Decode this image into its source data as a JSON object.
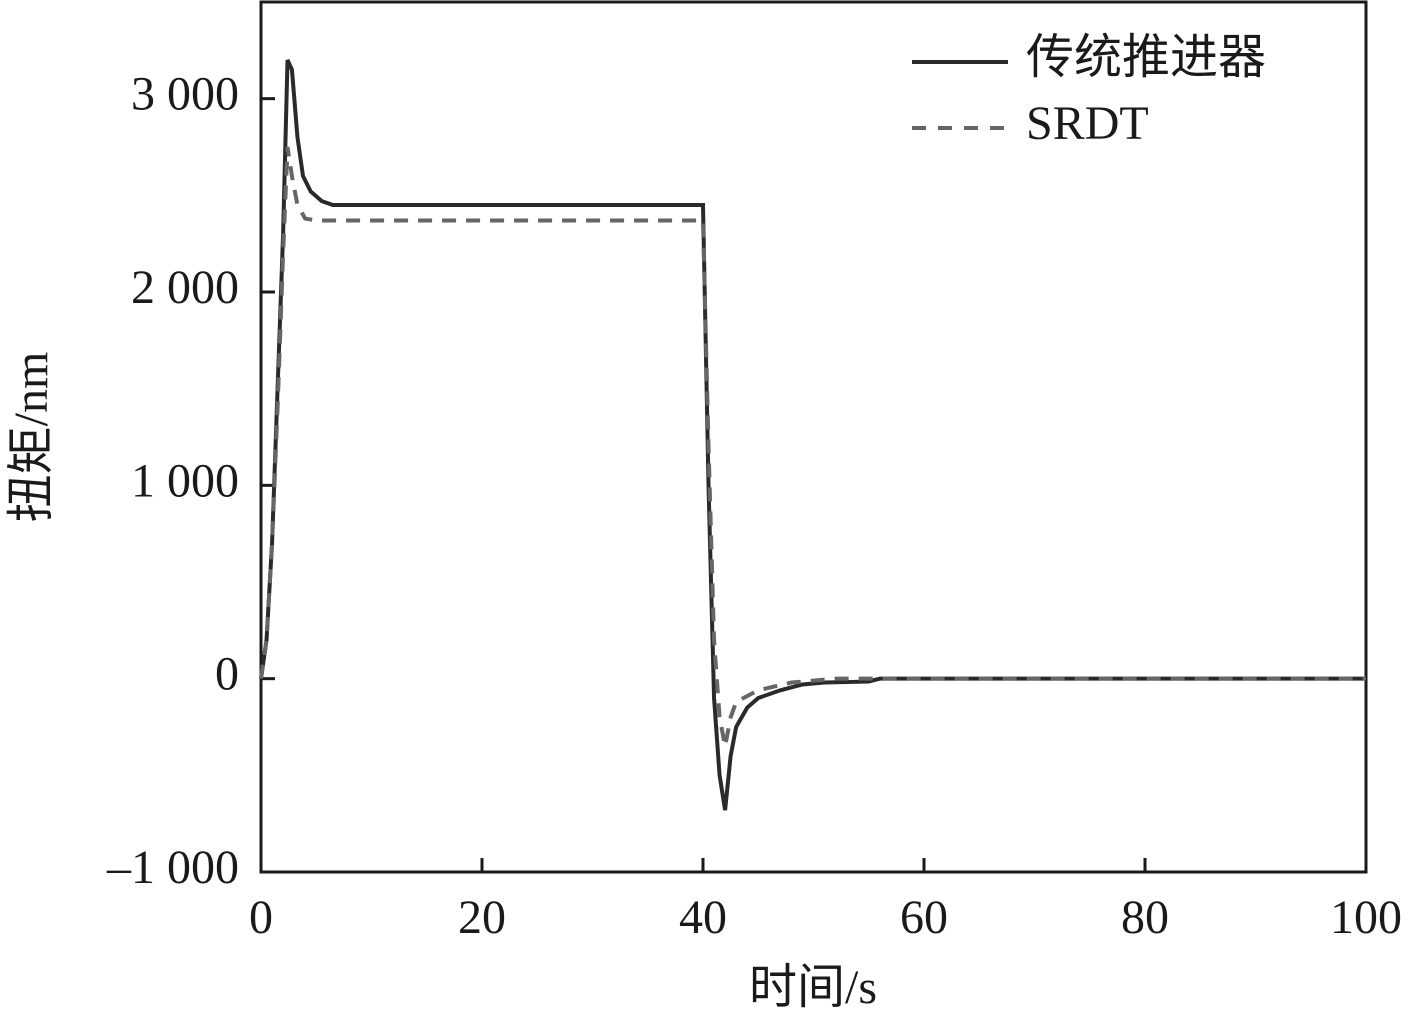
{
  "chart_data": {
    "type": "line",
    "xlabel": "时间/s",
    "ylabel": "扭矩/nm",
    "xlim": [
      0,
      100
    ],
    "xticks": [
      0,
      20,
      40,
      60,
      80,
      100
    ],
    "ylim": [
      -1000,
      3500
    ],
    "yticks": [
      {
        "value": -1000,
        "label": "–1 000"
      },
      0,
      {
        "value": 1000,
        "label": "1 000"
      },
      {
        "value": 2000,
        "label": "2 000"
      },
      {
        "value": 3000,
        "label": "3 000"
      }
    ],
    "legend": "upper right",
    "series": [
      {
        "name": "传统推进器",
        "color": "#2a2a2a",
        "dash": false,
        "x": [
          0,
          0.5,
          1,
          1.5,
          2,
          2.4,
          2.8,
          3.3,
          3.8,
          4.5,
          5.5,
          6.5,
          40,
          40.5,
          41,
          41.5,
          42,
          42.5,
          43,
          44,
          45,
          47,
          49,
          51,
          55,
          56,
          100
        ],
        "values": [
          0,
          200,
          700,
          1500,
          2300,
          3200,
          3150,
          2800,
          2600,
          2520,
          2470,
          2450,
          2450,
          1000,
          -100,
          -500,
          -680,
          -400,
          -250,
          -150,
          -100,
          -60,
          -30,
          -20,
          -15,
          0,
          0
        ]
      },
      {
        "name": "SRDT",
        "color": "#666666",
        "dash": true,
        "x": [
          0,
          0.5,
          1,
          1.5,
          2,
          2.4,
          2.8,
          3.3,
          4,
          5,
          40,
          40.5,
          41,
          41.5,
          42,
          42.5,
          43,
          45,
          48,
          52,
          100
        ],
        "values": [
          0,
          200,
          700,
          1400,
          2200,
          2750,
          2600,
          2450,
          2380,
          2370,
          2370,
          1200,
          200,
          -200,
          -350,
          -200,
          -120,
          -60,
          -20,
          0,
          0
        ]
      }
    ]
  }
}
